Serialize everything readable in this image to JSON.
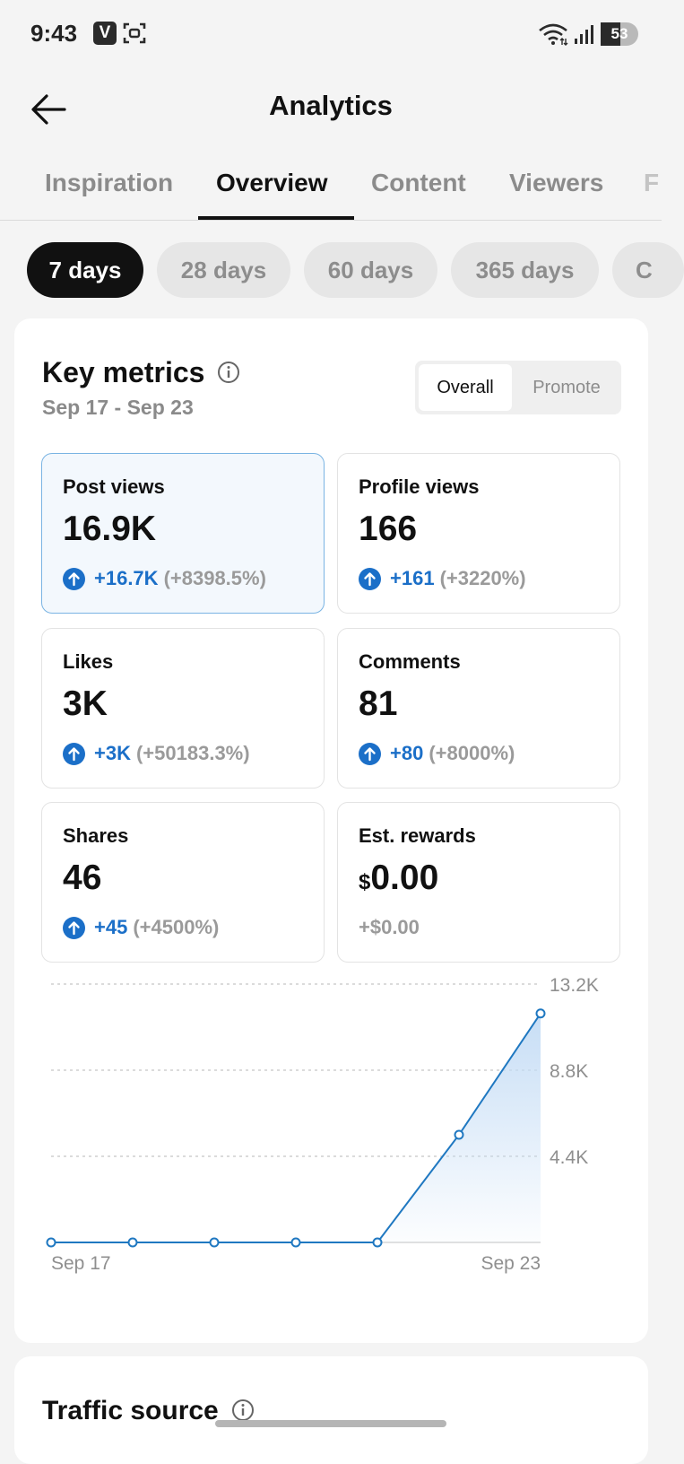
{
  "status_bar": {
    "time": "9:43",
    "app_badge": "V",
    "battery_level": "53",
    "icons": [
      "v-app-icon",
      "scan-icon",
      "wifi-icon",
      "signal-icon",
      "battery-icon"
    ]
  },
  "header": {
    "title": "Analytics",
    "back_icon": "arrow-left-icon"
  },
  "tabs": [
    {
      "label": "Inspiration",
      "active": false
    },
    {
      "label": "Overview",
      "active": true
    },
    {
      "label": "Content",
      "active": false
    },
    {
      "label": "Viewers",
      "active": false
    },
    {
      "label": "F",
      "active": false
    }
  ],
  "periods": [
    {
      "label": "7 days",
      "active": true
    },
    {
      "label": "28 days",
      "active": false
    },
    {
      "label": "60 days",
      "active": false
    },
    {
      "label": "365 days",
      "active": false
    },
    {
      "label": "C",
      "active": false
    }
  ],
  "key_metrics": {
    "title": "Key metrics",
    "date_range": "Sep 17 - Sep 23",
    "segments": [
      "Overall",
      "Promote"
    ],
    "active_segment": "Overall",
    "metrics": [
      {
        "label": "Post views",
        "value": "16.9K",
        "change": "+16.7K",
        "change_pct": "(+8398.5%)",
        "selected": true
      },
      {
        "label": "Profile views",
        "value": "166",
        "change": "+161",
        "change_pct": "(+3220%)"
      },
      {
        "label": "Likes",
        "value": "3K",
        "change": "+3K",
        "change_pct": "(+50183.3%)"
      },
      {
        "label": "Comments",
        "value": "81",
        "change": "+80",
        "change_pct": "(+8000%)"
      },
      {
        "label": "Shares",
        "value": "46",
        "change": "+45",
        "change_pct": "(+4500%)"
      },
      {
        "label": "Est. rewards",
        "currency": "$",
        "value": "0.00",
        "change": "+$0.00"
      }
    ]
  },
  "chart_data": {
    "type": "area",
    "title": "",
    "x": [
      "Sep 17",
      "Sep 18",
      "Sep 19",
      "Sep 20",
      "Sep 21",
      "Sep 22",
      "Sep 23"
    ],
    "x_tick_labels": [
      "Sep 17",
      "Sep 23"
    ],
    "values": [
      0,
      0,
      0,
      0,
      0,
      5500,
      11700
    ],
    "y_ticks": [
      4400,
      8800,
      13200
    ],
    "y_tick_labels": [
      "4.4K",
      "8.8K",
      "13.2K"
    ],
    "ylim": [
      0,
      13200
    ],
    "xlabel": "",
    "ylabel": "",
    "grid": "horizontal dashed",
    "line_color": "#1f78c1",
    "fill_color": "#cfe2f7"
  },
  "traffic_source": {
    "title": "Traffic source"
  }
}
